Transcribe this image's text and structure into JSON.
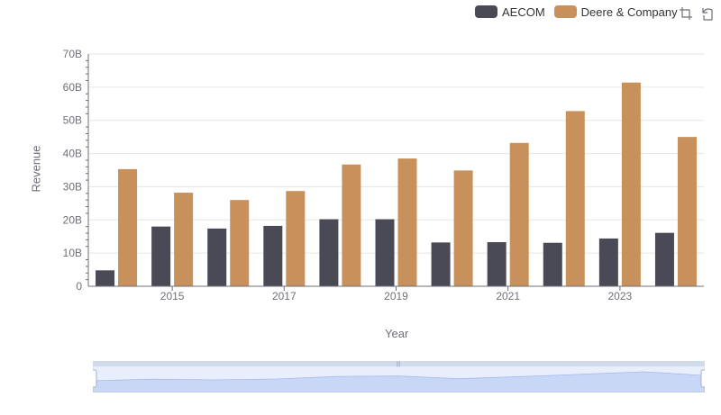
{
  "chart_data": {
    "type": "bar",
    "title": "",
    "xlabel": "Year",
    "ylabel": "Revenue",
    "ylim": [
      0,
      70000000000
    ],
    "y_ticks": [
      "0",
      "10B",
      "20B",
      "30B",
      "40B",
      "50B",
      "60B",
      "70B"
    ],
    "x_tick_labels": [
      "2015",
      "2017",
      "2019",
      "2021",
      "2023"
    ],
    "categories": [
      "2014",
      "2015",
      "2016",
      "2017",
      "2018",
      "2019",
      "2020",
      "2021",
      "2022",
      "2023",
      "2024"
    ],
    "series": [
      {
        "name": "AECOM",
        "color": "#4a4a56",
        "values": [
          4800000000,
          18000000000,
          17400000000,
          18200000000,
          20200000000,
          20200000000,
          13200000000,
          13300000000,
          13100000000,
          14400000000,
          16100000000
        ]
      },
      {
        "name": "Deere & Company",
        "color": "#c8905a",
        "values": [
          35300000000,
          28200000000,
          26000000000,
          28700000000,
          36700000000,
          38500000000,
          34900000000,
          43200000000,
          52800000000,
          61400000000,
          45000000000
        ]
      }
    ],
    "grid": true,
    "legend_position": "top-right"
  },
  "toolbox": {
    "zoom_icon": "zoom-icon",
    "restore_icon": "restore-icon"
  }
}
